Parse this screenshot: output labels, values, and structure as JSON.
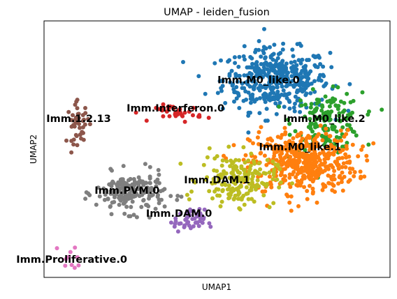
{
  "chart_data": {
    "type": "scatter",
    "title": "UMAP - leiden_fusion",
    "xlabel": "UMAP1",
    "ylabel": "UMAP2",
    "xlim": [
      0,
      100
    ],
    "ylim": [
      0,
      100
    ],
    "grid": false,
    "legend": "on data",
    "series": [
      {
        "name": "Imm.M0_like.0",
        "color": "#1f77b4",
        "points": 420,
        "center": [
          67,
          77
        ],
        "spread": [
          14,
          11
        ]
      },
      {
        "name": "Imm.M0_like.2",
        "color": "#2ca02c",
        "points": 160,
        "center": [
          82,
          61
        ],
        "spread": [
          9,
          10
        ]
      },
      {
        "name": "Imm.M0_like.1",
        "color": "#ff7f0e",
        "points": 480,
        "center": [
          75,
          45
        ],
        "spread": [
          14,
          11
        ]
      },
      {
        "name": "Imm.Interferon.0",
        "color": "#d62728",
        "points": 35,
        "center": [
          39,
          64
        ],
        "spread": [
          6,
          3
        ]
      },
      {
        "name": "Imm.1.2.13",
        "color": "#8c564b",
        "points": 45,
        "center": [
          10,
          60
        ],
        "spread": [
          3,
          7
        ]
      },
      {
        "name": "Imm.PVM.0",
        "color": "#7f7f7f",
        "points": 190,
        "center": [
          25,
          33
        ],
        "spread": [
          9,
          7
        ]
      },
      {
        "name": "Imm.DAM.1",
        "color": "#bcbd22",
        "points": 190,
        "center": [
          56,
          38
        ],
        "spread": [
          10,
          9
        ]
      },
      {
        "name": "Imm.DAM.0",
        "color": "#9467bd",
        "points": 50,
        "center": [
          42,
          22
        ],
        "spread": [
          4,
          4
        ]
      },
      {
        "name": "Imm.Proliferative.0",
        "color": "#e377c2",
        "points": 10,
        "center": [
          8,
          7
        ],
        "spread": [
          3,
          5
        ]
      }
    ],
    "labels": [
      {
        "text": "Imm.M0_like.0",
        "x": 62,
        "y": 77
      },
      {
        "text": "Imm.M0_like.2",
        "x": 81,
        "y": 62
      },
      {
        "text": "Imm.M0_like.1",
        "x": 74,
        "y": 51
      },
      {
        "text": "Imm.Interferon.0",
        "x": 38,
        "y": 66
      },
      {
        "text": "Imm.1.2.13",
        "x": 10,
        "y": 62
      },
      {
        "text": "Imm.PVM.0",
        "x": 24,
        "y": 34
      },
      {
        "text": "Imm.DAM.1",
        "x": 50,
        "y": 38
      },
      {
        "text": "Imm.DAM.0",
        "x": 39,
        "y": 25
      },
      {
        "text": "Imm.Proliferative.0",
        "x": 8,
        "y": 7
      }
    ]
  }
}
